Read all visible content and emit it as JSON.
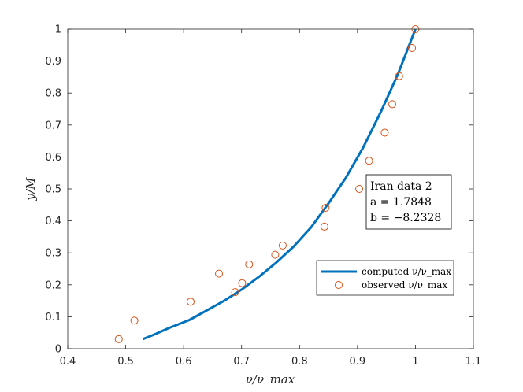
{
  "chart_data": {
    "type": "line",
    "title": "",
    "xlabel": "ν/ν_max",
    "ylabel": "y/M",
    "xlim": [
      0.4,
      1.1
    ],
    "ylim": [
      0,
      1
    ],
    "xticks": [
      "0.4",
      "0.5",
      "0.6",
      "0.7",
      "0.8",
      "0.9",
      "1",
      "1.1"
    ],
    "yticks": [
      "0",
      "0.1",
      "0.2",
      "0.3",
      "0.4",
      "0.5",
      "0.6",
      "0.7",
      "0.8",
      "0.9",
      "1"
    ],
    "grid": false,
    "legend_position": "lower-right",
    "series": [
      {
        "name": "computed ν/ν_max",
        "style": "line",
        "color": "#0072bd",
        "x": [
          0.53,
          0.55,
          0.575,
          0.61,
          0.64,
          0.67,
          0.7,
          0.73,
          0.76,
          0.79,
          0.82,
          0.85,
          0.88,
          0.91,
          0.94,
          0.97,
          1.0
        ],
        "y": [
          0.03,
          0.045,
          0.065,
          0.09,
          0.12,
          0.15,
          0.185,
          0.225,
          0.27,
          0.32,
          0.38,
          0.455,
          0.535,
          0.63,
          0.74,
          0.86,
          1.0
        ]
      },
      {
        "name": "observed ν/ν_max",
        "style": "markers",
        "marker": "circle",
        "color": "#d95319",
        "x": [
          0.488,
          0.515,
          0.612,
          0.661,
          0.689,
          0.701,
          0.713,
          0.758,
          0.771,
          0.843,
          0.845,
          0.903,
          0.92,
          0.947,
          0.96,
          0.972,
          0.994,
          1.0
        ],
        "y": [
          0.03,
          0.088,
          0.147,
          0.235,
          0.177,
          0.205,
          0.264,
          0.294,
          0.323,
          0.382,
          0.441,
          0.5,
          0.588,
          0.676,
          0.765,
          0.853,
          0.941,
          1.0
        ]
      }
    ],
    "annotation": {
      "lines": [
        "Iran data 2",
        "a = 1.7848",
        "b = −8.2328"
      ]
    }
  }
}
